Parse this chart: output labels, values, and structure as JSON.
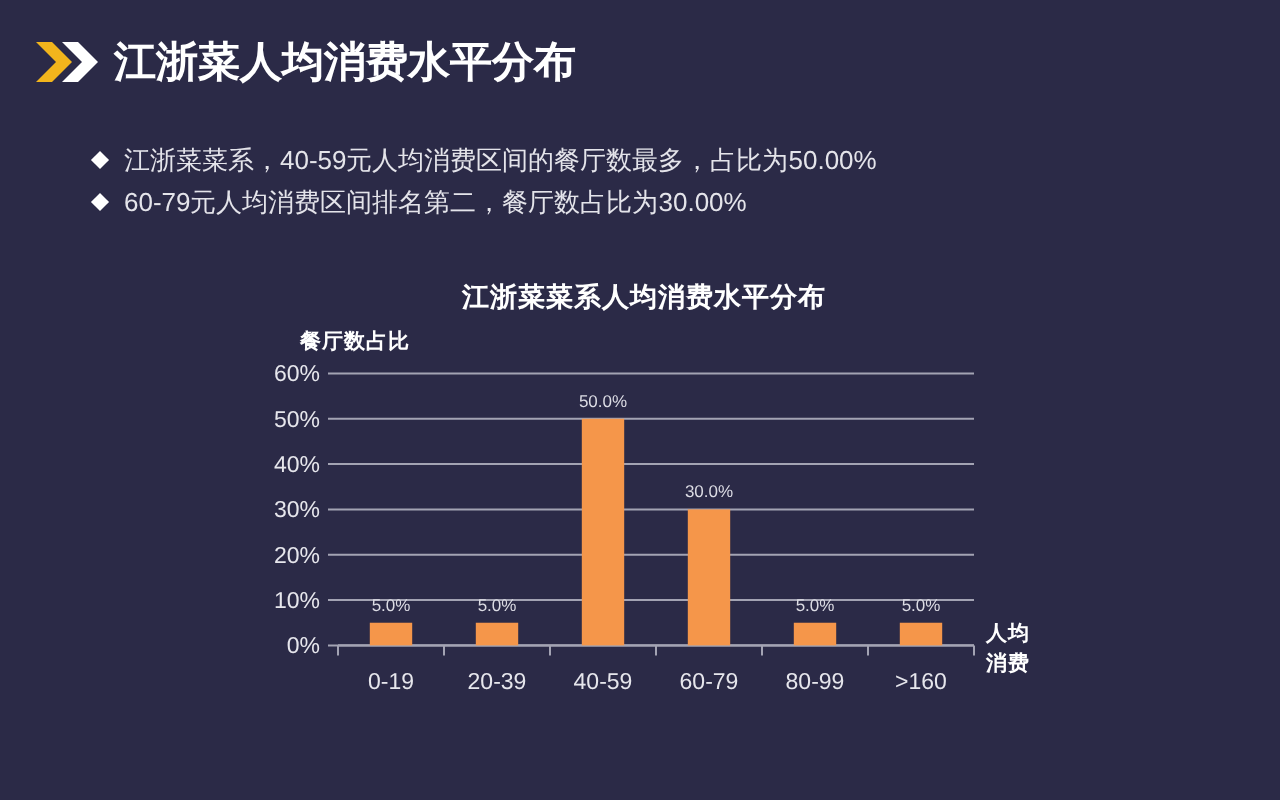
{
  "chart_data": {
    "type": "bar",
    "title": "江浙菜人均消费水平分布",
    "subtitle": "江浙菜菜系人均消费水平分布",
    "annotations": [
      "江浙菜菜系，40-59元人均消费区间的餐厅数最多，占比为50.00%",
      "60-79元人均消费区间排名第二，餐厅数占比为30.00%"
    ],
    "ylabel": "餐厅数占比",
    "xlabel": "人均消费",
    "categories": [
      "0-19",
      "20-39",
      "40-59",
      "60-79",
      "80-99",
      ">160"
    ],
    "values": [
      5,
      5,
      50,
      30,
      5,
      5
    ],
    "value_labels": [
      "5.0%",
      "5.0%",
      "50.0%",
      "30.0%",
      "5.0%",
      "5.0%"
    ],
    "color": "#f5964a",
    "ylim": [
      0,
      60
    ],
    "yticks": [
      {
        "value": 0,
        "label": "0%"
      },
      {
        "value": 10,
        "label": "10%"
      },
      {
        "value": 20,
        "label": "20%"
      },
      {
        "value": 30,
        "label": "30%"
      },
      {
        "value": 40,
        "label": "40%"
      },
      {
        "value": 50,
        "label": "50%"
      },
      {
        "value": 60,
        "label": "60%"
      }
    ],
    "grid": "y"
  }
}
